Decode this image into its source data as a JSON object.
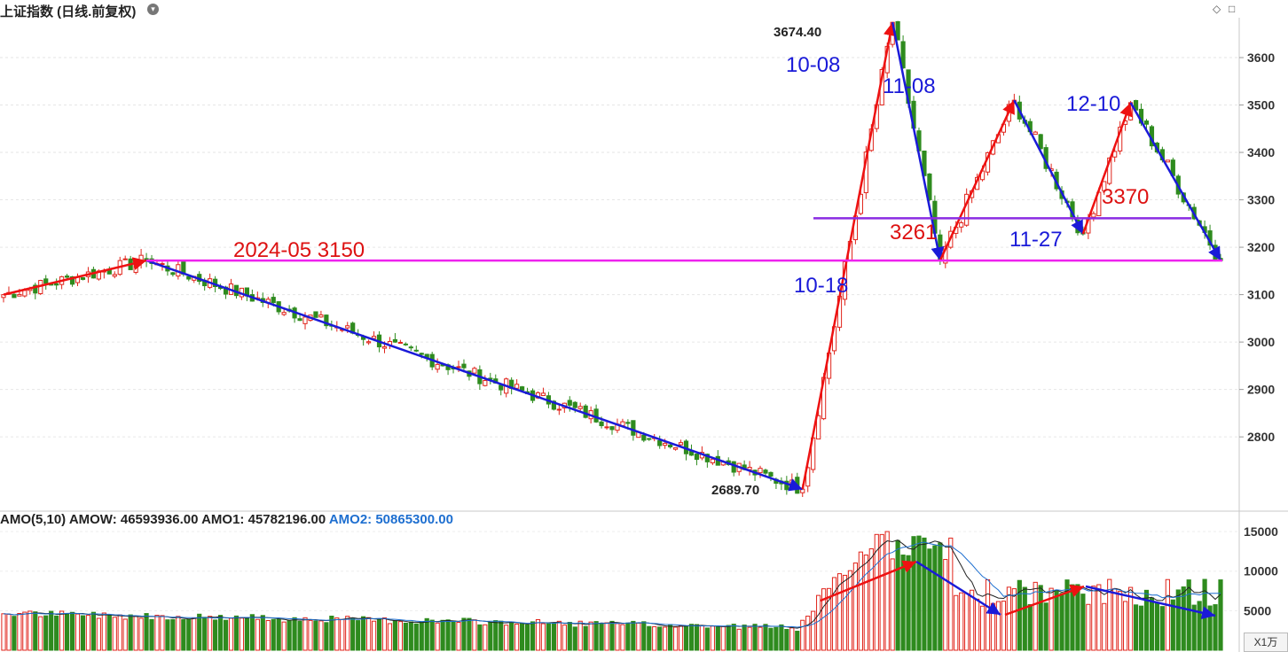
{
  "header": {
    "title": "上证指数 (日线.前复权)",
    "title_icon": "chevron-down-icon",
    "win_controls": [
      "◇",
      "□"
    ]
  },
  "indicator": {
    "label": "AMO(5,10)",
    "amow_label": "AMOW:",
    "amow": "46593936.00",
    "amo1_label": "AMO1:",
    "amo1": "45782196.00",
    "amo2_label": "AMO2:",
    "amo2": "50865300.00"
  },
  "unit_button": "X1万",
  "colors": {
    "up": "#e0241b",
    "down": "#2e8b1e",
    "trend_up": "#ee1111",
    "trend_down": "#1a1ad8",
    "support_line": "#ee22ee",
    "level_line": "#8a2be2",
    "note_blue": "#1a1ad8",
    "note_red": "#dd1111"
  },
  "chart_data": [
    {
      "type": "candlestick",
      "title": "上证指数 (日线.前复权)",
      "y_ticks": [
        2800,
        2900,
        3000,
        3100,
        3200,
        3300,
        3400,
        3500,
        3600
      ],
      "ylim": [
        2650,
        3720
      ],
      "price_labels": {
        "high": "3674.40",
        "low": "2689.70"
      },
      "annotations": [
        {
          "text": "2024-05  3150",
          "color": "red"
        },
        {
          "text": "10-08",
          "color": "blue"
        },
        {
          "text": "11-08",
          "color": "blue"
        },
        {
          "text": "12-10",
          "color": "blue"
        },
        {
          "text": "10-18",
          "color": "blue"
        },
        {
          "text": "11-27",
          "color": "blue"
        },
        {
          "text": "3261",
          "color": "red"
        },
        {
          "text": "3370",
          "color": "red"
        }
      ],
      "key_points": [
        {
          "label": "start",
          "value": 3100
        },
        {
          "label": "2024-05",
          "value": 3172
        },
        {
          "label": "low",
          "value": 2689.7
        },
        {
          "label": "10-08",
          "value": 3674.4
        },
        {
          "label": "10-18",
          "value": 3172
        },
        {
          "label": "11-08",
          "value": 3510
        },
        {
          "label": "11-27",
          "value": 3228
        },
        {
          "label": "12-10",
          "value": 3505
        },
        {
          "label": "end",
          "value": 3172
        }
      ],
      "horizontal_levels": [
        3172,
        3261
      ],
      "grid": "horizontal dashed"
    },
    {
      "type": "bar",
      "title": "AMO(5,10)",
      "y_ticks": [
        5000,
        10000,
        15000
      ],
      "ylim": [
        0,
        15000
      ],
      "unit": "X1万",
      "series_names": [
        "AMOW",
        "AMO1",
        "AMO2"
      ],
      "values_latest": [
        46593936.0,
        45782196.0,
        50865300.0
      ]
    }
  ]
}
